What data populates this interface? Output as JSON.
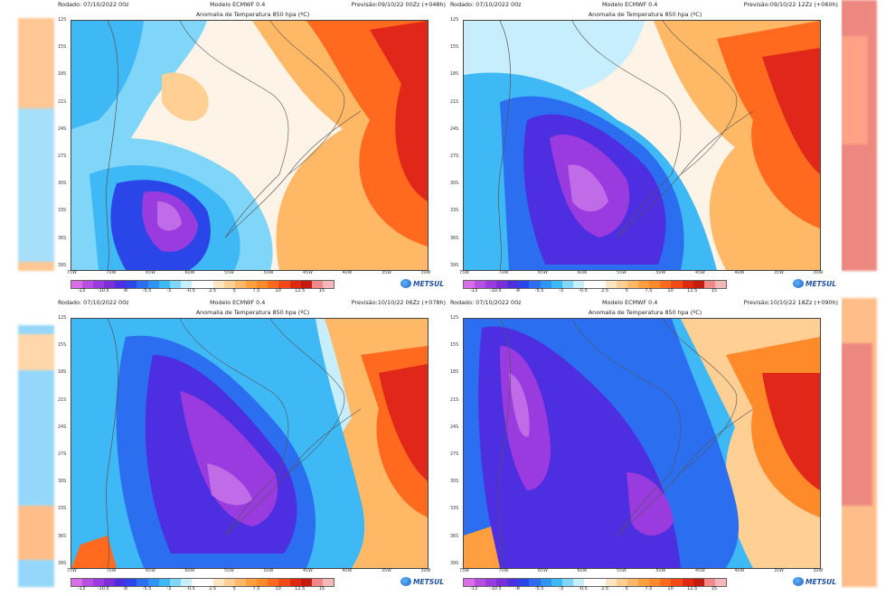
{
  "colors": {
    "deep_purple": "#8b2fd6",
    "purple": "#c06be8",
    "indigo": "#3b33d8",
    "blue": "#2f7cf0",
    "light_blue": "#5fc5f5",
    "white": "#fdfdfd",
    "peach": "#ffd2a0",
    "orange": "#ff9a3c",
    "red_orange": "#ff5522",
    "red": "#e01a12"
  },
  "colorbar": {
    "labels": [
      "-13",
      "-10.5",
      "-8",
      "-5.5",
      "-3",
      "-0.5",
      "2.5",
      "5",
      "7.5",
      "10",
      "12.5",
      "15"
    ],
    "swatches": [
      "#d96ee8",
      "#b84fe0",
      "#9a3be0",
      "#7a2fd8",
      "#4d2ee0",
      "#2b46e8",
      "#2b6ef0",
      "#2e95f5",
      "#3fb8f6",
      "#7fd6f8",
      "#c6eefc",
      "#ffffff",
      "#ffffff",
      "#ffe6c2",
      "#ffcf94",
      "#ffb865",
      "#ff9f40",
      "#ff8a2a",
      "#ff6a1e",
      "#f24a16",
      "#df2a10",
      "#c51a0e",
      "#f08a8a",
      "#f5b7b7"
    ]
  },
  "lat_labels": [
    "12S",
    "15S",
    "18S",
    "21S",
    "24S",
    "27S",
    "30S",
    "33S",
    "36S",
    "39S"
  ],
  "lon_labels": [
    "75W",
    "70W",
    "65W",
    "60W",
    "55W",
    "50W",
    "45W",
    "40W",
    "35W",
    "30W"
  ],
  "logo": {
    "text": "METSUL",
    "icon": "metsul-logo-icon"
  },
  "panels": [
    {
      "run": "Rodado: 07/10/2022 00z",
      "model": "Modelo ECMWF 0.4",
      "forecast": "Previsão:09/10/22 00Zz (+048h)",
      "title": "Anomalia de Temperatura 850 hpa (ºC)"
    },
    {
      "run": "Rodado: 07/10/2022 00z",
      "model": "Modelo ECMWF 0.4",
      "forecast": "Previsão:09/10/22 12Zz (+060h)",
      "title": "Anomalia de Temperatura 850 hpa (ºC)"
    },
    {
      "run": "Rodado: 07/10/2022 00z",
      "model": "Modelo ECMWF 0.4",
      "forecast": "Previsão:10/10/22 06Zz (+078h)",
      "title": "Anomalia de Temperatura 850 hpa (ºC)"
    },
    {
      "run": "Rodado: 07/10/2022 00z",
      "model": "Modelo ECMWF 0.4",
      "forecast": "Previsão:10/10/22 18Zz (+090h)",
      "title": "Anomalia de Temperatura 850 hpa (ºC)"
    }
  ]
}
